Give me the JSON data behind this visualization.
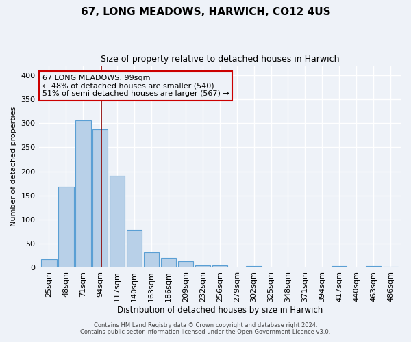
{
  "title": "67, LONG MEADOWS, HARWICH, CO12 4US",
  "subtitle": "Size of property relative to detached houses in Harwich",
  "xlabel": "Distribution of detached houses by size in Harwich",
  "ylabel": "Number of detached properties",
  "categories": [
    "25sqm",
    "48sqm",
    "71sqm",
    "94sqm",
    "117sqm",
    "140sqm",
    "163sqm",
    "186sqm",
    "209sqm",
    "232sqm",
    "256sqm",
    "279sqm",
    "302sqm",
    "325sqm",
    "348sqm",
    "371sqm",
    "394sqm",
    "417sqm",
    "440sqm",
    "463sqm",
    "486sqm"
  ],
  "values": [
    17,
    168,
    306,
    288,
    191,
    79,
    32,
    20,
    13,
    5,
    5,
    0,
    4,
    0,
    0,
    0,
    0,
    3,
    0,
    3,
    2
  ],
  "bar_color": "#b8d0e8",
  "bar_edge_color": "#5a9fd4",
  "vline_color": "#8b0000",
  "annotation_title": "67 LONG MEADOWS: 99sqm",
  "annotation_line1": "← 48% of detached houses are smaller (540)",
  "annotation_line2": "51% of semi-detached houses are larger (567) →",
  "annotation_box_color": "#cc0000",
  "ylim": [
    0,
    420
  ],
  "yticks": [
    0,
    50,
    100,
    150,
    200,
    250,
    300,
    350,
    400
  ],
  "footer1": "Contains HM Land Registry data © Crown copyright and database right 2024.",
  "footer2": "Contains public sector information licensed under the Open Government Licence v3.0.",
  "bg_color": "#eef2f8",
  "grid_color": "#ffffff"
}
